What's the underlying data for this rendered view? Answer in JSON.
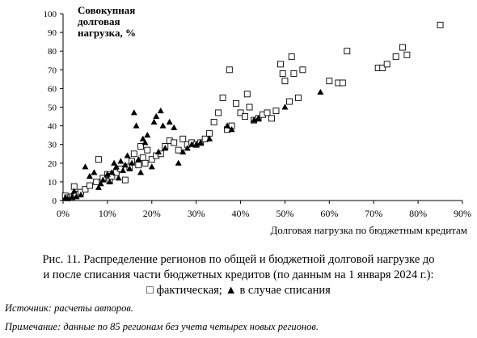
{
  "chart_data": {
    "type": "scatter",
    "ylabel_lines": [
      "Совокупная",
      "долговая",
      "нагрузка, %"
    ],
    "xlabel": "Долговая нагрузка по бюджетным кредитам",
    "xlim": [
      0,
      0.9
    ],
    "ylim": [
      0,
      100
    ],
    "x_ticks": [
      0,
      0.1,
      0.2,
      0.3,
      0.4,
      0.5,
      0.6,
      0.7,
      0.8,
      0.9
    ],
    "x_tick_labels": [
      "0%",
      "10%",
      "20%",
      "30%",
      "40%",
      "50%",
      "60%",
      "70%",
      "80%",
      "90%"
    ],
    "y_ticks": [
      0,
      10,
      20,
      30,
      40,
      50,
      60,
      70,
      80,
      90,
      100
    ],
    "y_tick_labels": [
      "0",
      "10",
      "20",
      "30",
      "40",
      "50",
      "60",
      "70",
      "80",
      "90",
      "100"
    ],
    "grid": false,
    "series": [
      {
        "name": "фактическая",
        "marker": "square-open",
        "points": [
          [
            0.005,
            2.5
          ],
          [
            0.01,
            1.5
          ],
          [
            0.02,
            2
          ],
          [
            0.025,
            7.5
          ],
          [
            0.03,
            3.5
          ],
          [
            0.04,
            4.5
          ],
          [
            0.05,
            6
          ],
          [
            0.06,
            8
          ],
          [
            0.075,
            10
          ],
          [
            0.08,
            22
          ],
          [
            0.09,
            12
          ],
          [
            0.1,
            14
          ],
          [
            0.105,
            10.5
          ],
          [
            0.11,
            13
          ],
          [
            0.12,
            15
          ],
          [
            0.13,
            17
          ],
          [
            0.14,
            11
          ],
          [
            0.15,
            18
          ],
          [
            0.155,
            21
          ],
          [
            0.16,
            25
          ],
          [
            0.17,
            19
          ],
          [
            0.175,
            29
          ],
          [
            0.18,
            23
          ],
          [
            0.185,
            20
          ],
          [
            0.19,
            27
          ],
          [
            0.2,
            22
          ],
          [
            0.21,
            24
          ],
          [
            0.22,
            25
          ],
          [
            0.23,
            29
          ],
          [
            0.24,
            32
          ],
          [
            0.25,
            31
          ],
          [
            0.26,
            27
          ],
          [
            0.27,
            33
          ],
          [
            0.28,
            30
          ],
          [
            0.29,
            31
          ],
          [
            0.3,
            30
          ],
          [
            0.31,
            31
          ],
          [
            0.32,
            33
          ],
          [
            0.33,
            36
          ],
          [
            0.34,
            42
          ],
          [
            0.35,
            47
          ],
          [
            0.36,
            55
          ],
          [
            0.37,
            38
          ],
          [
            0.375,
            70
          ],
          [
            0.38,
            40
          ],
          [
            0.39,
            52
          ],
          [
            0.4,
            47
          ],
          [
            0.41,
            45
          ],
          [
            0.415,
            57
          ],
          [
            0.42,
            50
          ],
          [
            0.43,
            43
          ],
          [
            0.44,
            44
          ],
          [
            0.45,
            46
          ],
          [
            0.46,
            47
          ],
          [
            0.47,
            44
          ],
          [
            0.48,
            48
          ],
          [
            0.49,
            73
          ],
          [
            0.495,
            68
          ],
          [
            0.5,
            64
          ],
          [
            0.51,
            53
          ],
          [
            0.515,
            77
          ],
          [
            0.52,
            68
          ],
          [
            0.53,
            55
          ],
          [
            0.54,
            70
          ],
          [
            0.6,
            64
          ],
          [
            0.62,
            63
          ],
          [
            0.63,
            63
          ],
          [
            0.64,
            80
          ],
          [
            0.71,
            71
          ],
          [
            0.72,
            71
          ],
          [
            0.73,
            73
          ],
          [
            0.75,
            77
          ],
          [
            0.765,
            82
          ],
          [
            0.775,
            78
          ],
          [
            0.85,
            94
          ]
        ]
      },
      {
        "name": "в случае списания",
        "marker": "triangle-filled",
        "points": [
          [
            0.005,
            1.5
          ],
          [
            0.01,
            1
          ],
          [
            0.02,
            2
          ],
          [
            0.025,
            5
          ],
          [
            0.03,
            2
          ],
          [
            0.04,
            3
          ],
          [
            0.05,
            18
          ],
          [
            0.06,
            13
          ],
          [
            0.07,
            15
          ],
          [
            0.08,
            7
          ],
          [
            0.085,
            9
          ],
          [
            0.09,
            11
          ],
          [
            0.1,
            14
          ],
          [
            0.105,
            10
          ],
          [
            0.11,
            15
          ],
          [
            0.115,
            20
          ],
          [
            0.12,
            18
          ],
          [
            0.125,
            12
          ],
          [
            0.13,
            21
          ],
          [
            0.135,
            16
          ],
          [
            0.14,
            19
          ],
          [
            0.145,
            24
          ],
          [
            0.15,
            17
          ],
          [
            0.155,
            20
          ],
          [
            0.16,
            47
          ],
          [
            0.165,
            40
          ],
          [
            0.17,
            22
          ],
          [
            0.175,
            15
          ],
          [
            0.18,
            33
          ],
          [
            0.185,
            31
          ],
          [
            0.19,
            35
          ],
          [
            0.2,
            18
          ],
          [
            0.205,
            42
          ],
          [
            0.21,
            45
          ],
          [
            0.215,
            26
          ],
          [
            0.22,
            48
          ],
          [
            0.225,
            40
          ],
          [
            0.23,
            28
          ],
          [
            0.24,
            42
          ],
          [
            0.25,
            39
          ],
          [
            0.26,
            20
          ],
          [
            0.27,
            26
          ],
          [
            0.28,
            28
          ],
          [
            0.29,
            30
          ],
          [
            0.3,
            30
          ],
          [
            0.31,
            31
          ],
          [
            0.33,
            33
          ],
          [
            0.37,
            40
          ],
          [
            0.38,
            38
          ],
          [
            0.43,
            43
          ],
          [
            0.44,
            44
          ],
          [
            0.5,
            50
          ],
          [
            0.58,
            58
          ]
        ]
      }
    ]
  },
  "caption_lines": [
    "Рис. 11. Распределение регионов по общей и бюджетной долговой нагрузке до",
    "и после списания части бюджетных кредитов (по данным на 1 января 2024 г.):"
  ],
  "legend": {
    "square_icon": "□",
    "series1": "фактическая;",
    "triangle_icon": "▲",
    "series2": "в случае списания"
  },
  "source_note": "Источник: расчеты авторов.",
  "remark_note": "Примечание: данные по 85 регионам без учета четырех новых регионов."
}
